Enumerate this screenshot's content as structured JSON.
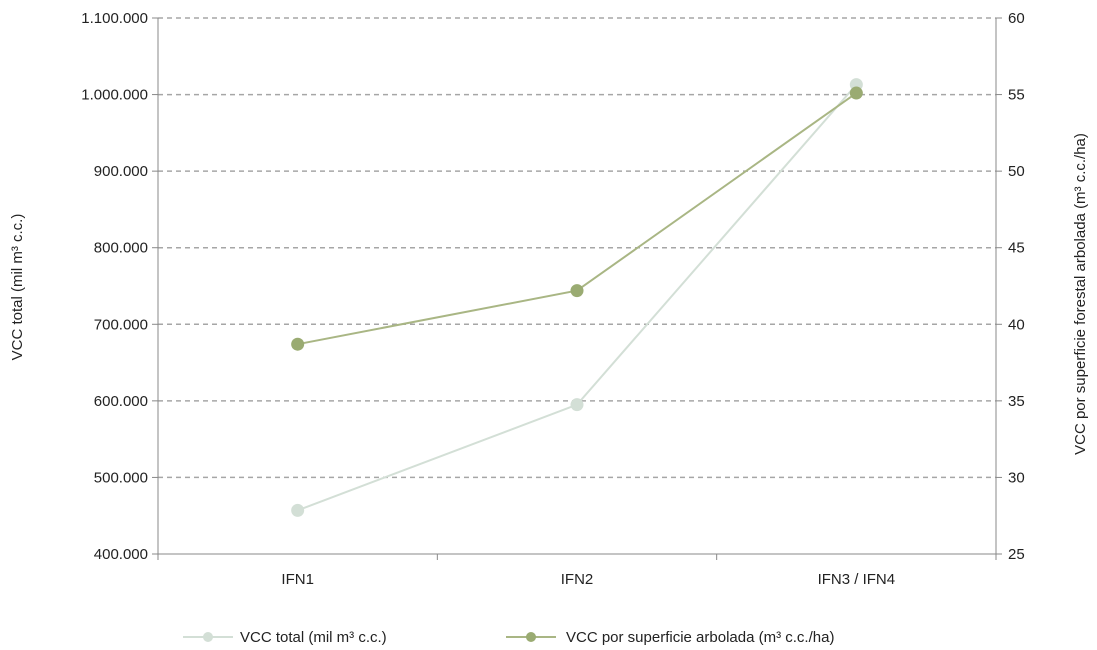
{
  "chart_data": {
    "type": "line",
    "categories": [
      "IFN1",
      "IFN2",
      "IFN3 / IFN4"
    ],
    "y_left": {
      "label": "VCC total (mil m³ c.c.)",
      "ylim": [
        400000,
        1100000
      ],
      "ticks": [
        400000,
        500000,
        600000,
        700000,
        800000,
        900000,
        1000000,
        1100000
      ],
      "tick_labels": [
        "400.000",
        "500.000",
        "600.000",
        "700.000",
        "800.000",
        "900.000",
        "1.000.000",
        "1.100.000"
      ]
    },
    "y_right": {
      "label": "VCC por superficie forestal arbolada (m³ c.c./ha)",
      "ylim": [
        25,
        60
      ],
      "ticks": [
        25,
        30,
        35,
        40,
        45,
        50,
        55,
        60
      ],
      "tick_labels": [
        "25",
        "30",
        "35",
        "40",
        "45",
        "50",
        "55",
        "60"
      ]
    },
    "series": [
      {
        "name": "VCC total (mil m³ c.c.)",
        "axis": "left",
        "color": "#d3dfd6",
        "values": [
          457000,
          595000,
          1013000
        ]
      },
      {
        "name": "VCC por superficie arbolada (m³ c.c./ha)",
        "axis": "right",
        "color": "#a9b684",
        "marker_color": "#9aab72",
        "values": [
          38.7,
          42.2,
          55.1
        ]
      }
    ],
    "grid": true,
    "grid_style": "dashed",
    "legend_position": "bottom"
  }
}
